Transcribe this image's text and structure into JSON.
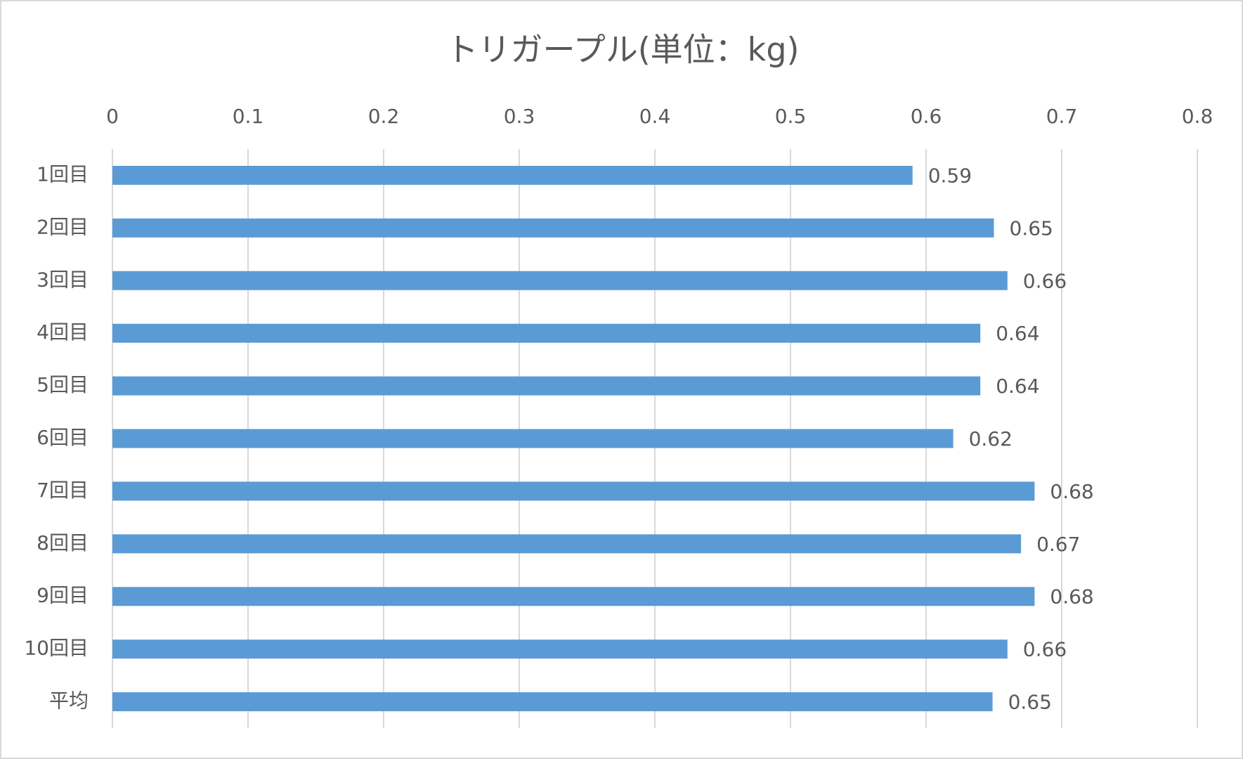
{
  "chart_data": {
    "type": "barh",
    "title": "トリガープル(単位：kg)",
    "categories": [
      "1回目",
      "2回目",
      "3回目",
      "4回目",
      "5回目",
      "6回目",
      "7回目",
      "8回目",
      "9回目",
      "10回目",
      "平均"
    ],
    "values": [
      0.59,
      0.65,
      0.66,
      0.64,
      0.64,
      0.62,
      0.68,
      0.67,
      0.68,
      0.66,
      0.649
    ],
    "value_labels": [
      "0.59",
      "0.65",
      "0.66",
      "0.64",
      "0.64",
      "0.62",
      "0.68",
      "0.67",
      "0.68",
      "0.66",
      "0.65"
    ],
    "color": "#5b9bd5",
    "xlim": [
      0,
      0.8
    ],
    "xticks": [
      0,
      0.1,
      0.2,
      0.3,
      0.4,
      0.5,
      0.6,
      0.7,
      0.8
    ],
    "grid": true
  }
}
